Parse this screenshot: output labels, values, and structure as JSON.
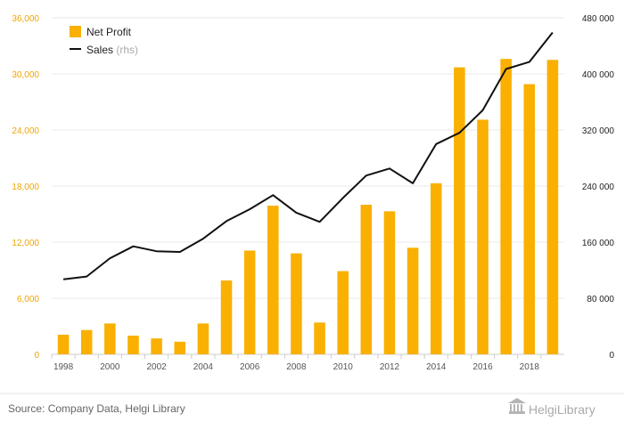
{
  "chart_data": {
    "type": "bar+line",
    "title": "",
    "x": [
      1998,
      1999,
      2000,
      2001,
      2002,
      2003,
      2004,
      2005,
      2006,
      2007,
      2008,
      2009,
      2010,
      2011,
      2012,
      2013,
      2014,
      2015,
      2016,
      2017,
      2018,
      2019
    ],
    "x_tick_labels": [
      "1998",
      "2000",
      "2002",
      "2004",
      "2006",
      "2008",
      "2010",
      "2012",
      "2014",
      "2016",
      "2018"
    ],
    "series": [
      {
        "name": "Net Profit",
        "kind": "bar",
        "axis": "left",
        "color": "#f9b000",
        "values": [
          2100,
          2600,
          3300,
          2000,
          1700,
          1350,
          3300,
          7900,
          11100,
          15900,
          10800,
          3400,
          8900,
          16000,
          15300,
          11400,
          18300,
          30700,
          25100,
          31600,
          28900,
          31500
        ]
      },
      {
        "name": "Sales",
        "suffix": "(rhs)",
        "kind": "line",
        "axis": "right",
        "color": "#111111",
        "values": [
          107000,
          111000,
          137000,
          154000,
          147000,
          146000,
          165000,
          190000,
          207000,
          227000,
          202000,
          189000,
          223000,
          255000,
          265000,
          244000,
          300000,
          316000,
          348000,
          407000,
          417000,
          459000
        ]
      }
    ],
    "y_left": {
      "min": 0,
      "max": 36000,
      "ticks": [
        0,
        6000,
        12000,
        18000,
        24000,
        30000,
        36000
      ],
      "tick_labels": [
        "0",
        "6,000",
        "12,000",
        "18,000",
        "24,000",
        "30,000",
        "36,000"
      ],
      "color": "#f0a500"
    },
    "y_right": {
      "min": 0,
      "max": 480000,
      "ticks": [
        0,
        80000,
        160000,
        240000,
        320000,
        400000,
        480000
      ],
      "tick_labels": [
        "0",
        "80 000",
        "160 000",
        "240 000",
        "320 000",
        "400 000",
        "480 000"
      ]
    },
    "legend_position": "top-left",
    "grid": true
  },
  "source_text": "Source: Company Data, Helgi Library",
  "logo_text": "HelgiLibrary"
}
